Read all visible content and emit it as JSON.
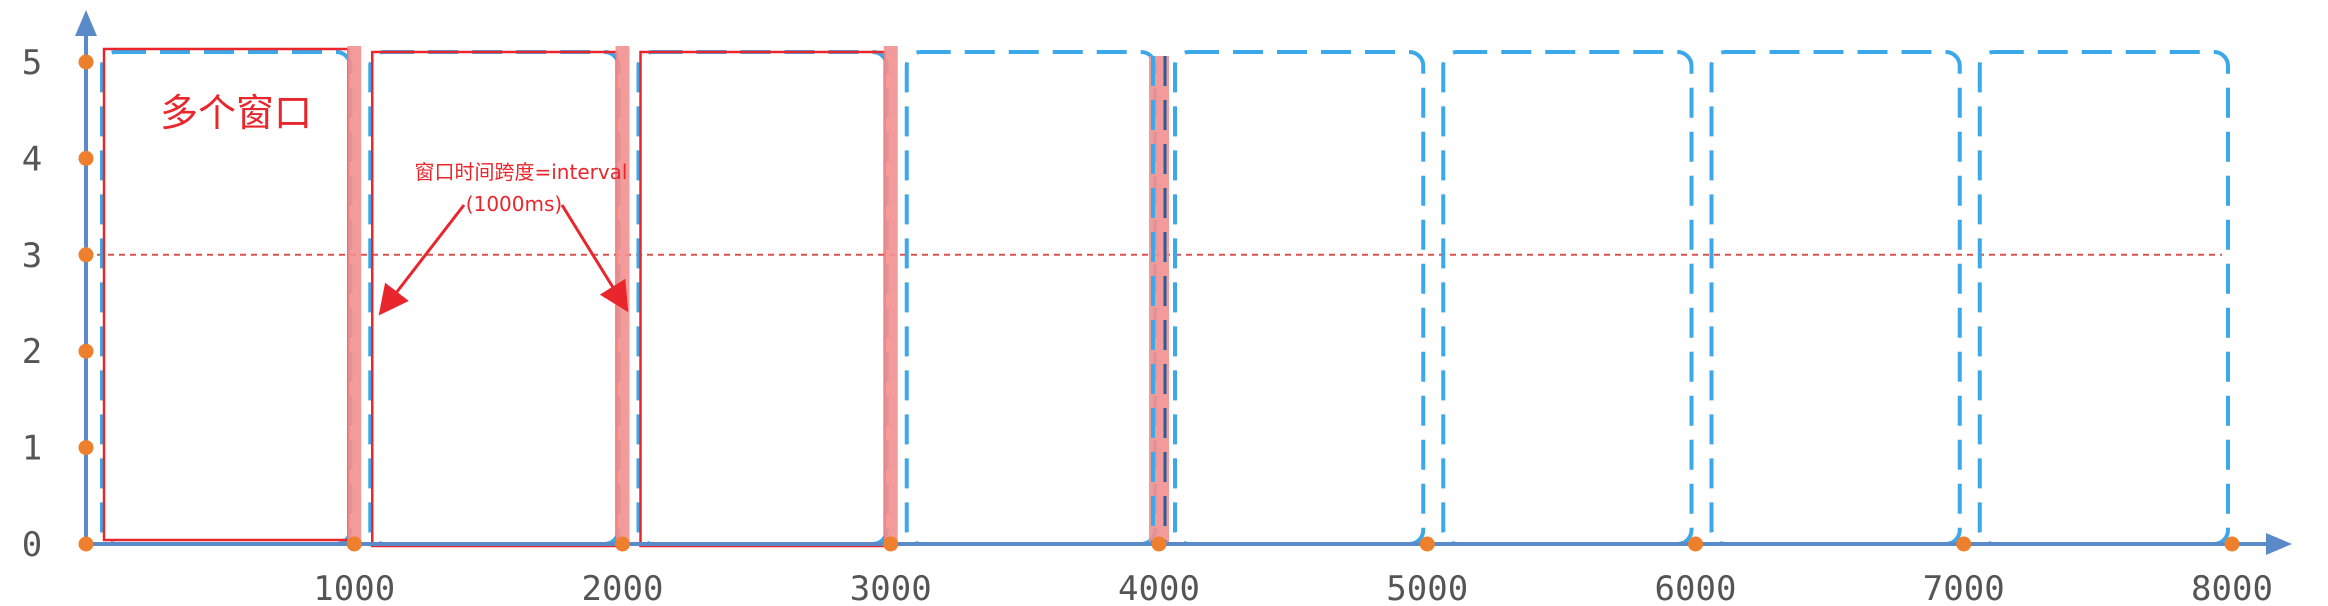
{
  "diagram": {
    "x_ticks": [
      1000,
      2000,
      3000,
      4000,
      5000,
      6000,
      7000,
      8000
    ],
    "x_tick_labels": [
      "1000",
      "2000",
      "3000",
      "4000",
      "5000",
      "6000",
      "7000",
      "8000"
    ],
    "y_ticks": [
      0,
      1,
      2,
      3,
      4,
      5
    ],
    "y_tick_labels": [
      "0",
      "1",
      "2",
      "3",
      "4",
      "5"
    ],
    "x_range": [
      0,
      8000
    ],
    "y_range": [
      0,
      5
    ],
    "threshold_y": 3,
    "windows": [
      {
        "start": 0,
        "end": 1000,
        "highlighted": true
      },
      {
        "start": 1000,
        "end": 2000,
        "highlighted": true
      },
      {
        "start": 2000,
        "end": 3000,
        "highlighted": true
      },
      {
        "start": 3000,
        "end": 4000,
        "highlighted": false
      },
      {
        "start": 4000,
        "end": 5000,
        "highlighted": false
      },
      {
        "start": 5000,
        "end": 6000,
        "highlighted": false
      },
      {
        "start": 6000,
        "end": 7000,
        "highlighted": false
      },
      {
        "start": 7000,
        "end": 8000,
        "highlighted": false
      }
    ],
    "boundary_markers": [
      1000,
      2000,
      3000,
      4000
    ],
    "annotations": {
      "title": "多个窗口",
      "note_line1": "窗口时间跨度=interval",
      "note_line2": "(1000ms)"
    },
    "colors": {
      "axis": "#5b8ac8",
      "window_dash": "#3ba8ea",
      "highlight_box": "#e8262c",
      "boundary_bar": "#f29090",
      "threshold": "#d9534f",
      "point": "#ee7f2d"
    }
  }
}
